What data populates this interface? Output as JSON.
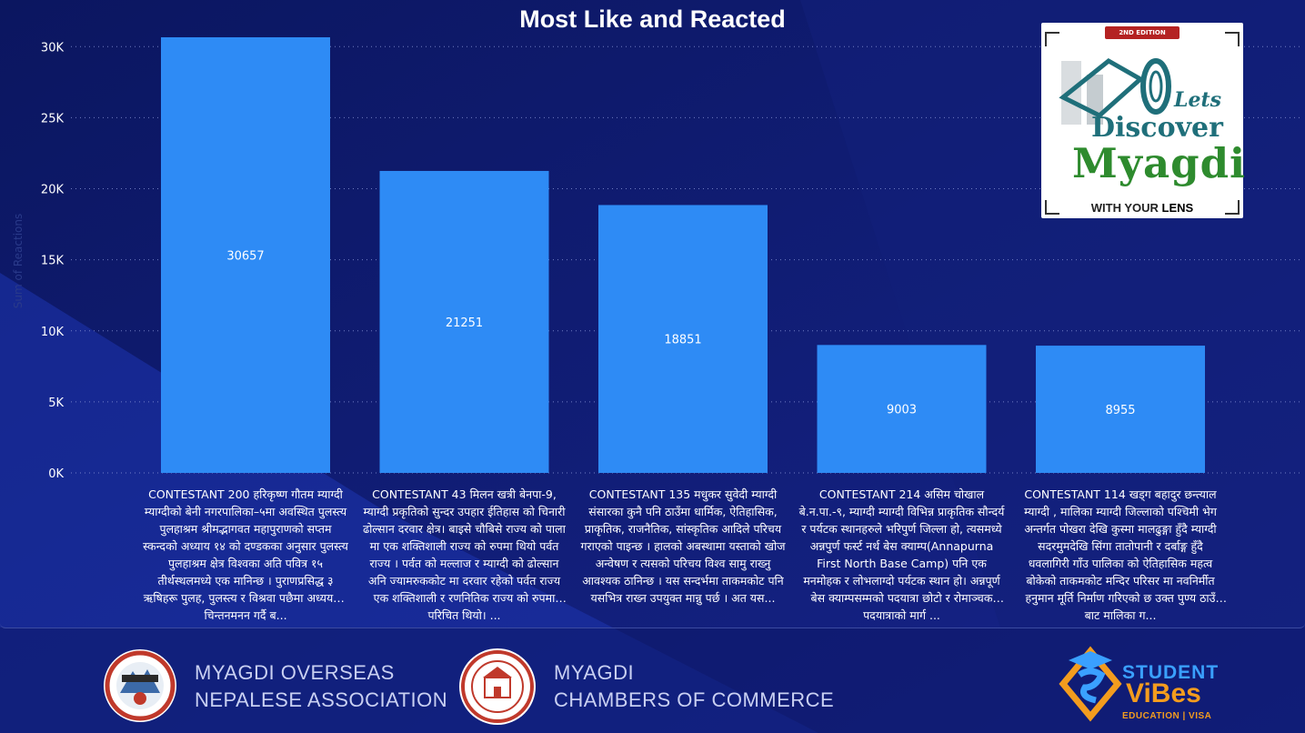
{
  "chart_data": {
    "type": "bar",
    "title": "Most Like and Reacted",
    "ylabel": "Sum of Reactions",
    "ylim": [
      0,
      32000
    ],
    "yticks": [
      0,
      5000,
      10000,
      15000,
      20000,
      25000,
      30000
    ],
    "ytick_labels": [
      "0K",
      "5K",
      "10K",
      "15K",
      "20K",
      "25K",
      "30K"
    ],
    "grid": true,
    "bar_color": "#2e8bf5",
    "categories": [
      "CONTESTANT 200 हरिकृष्ण गौतम म्याग्दी म्याग्दीको बेनी नगरपालिका–५मा अवस्थित पुलस्त्य पुलहाश्रम श्रीमद्भागवत महापुराणको सप्तम स्कन्दको अध्याय १४ को दण्डकका अनुसार पुलस्त्य पुलहाश्रम क्षेत्र विश्वका अति पवित्र १५ तीर्थस्थलमध्ये एक मानिन्छ । पुराणप्रसिद्ध ३ ऋषिहरू पुलह, पुलस्त्य र विश्रवा पछैमा अध्ययन र चिन्तनमनन गर्दै ब...",
      "CONTESTANT 43 मिलन खत्री बेनपा-9, म्याग्दी प्रकृतिको सुन्दर उपहार ईतिहास को चिनारी ढोल्सान दरवार क्षेत्र। बाइसे चौबिसे राज्य को पाला मा एक शक्तिशाली राज्य को रुपमा थियो पर्वत राज्य । पर्वत को मल्लाज र म्याग्दी को ढोल्सान अनि ज्यामरुककोट मा दरवार रहेको पर्वत राज्य एक शक्तिशाली र रणनितिक राज्य को रुपमा परिचित थियो। ...",
      "CONTESTANT 135 मधुकर सुवेदी म्याग्दी संसारका कुनै पनि ठाउँमा धार्मिक, ऐतिहासिक, प्राकृतिक, राजनैतिक, सांस्कृतिक आदिले परिचय गराएको पाइन्छ । हालको अबस्थामा यस्ताको खोज अन्वेषण र त्यसको परिचय विश्व सामु राख्नु आवश्यक ठानिन्छ । यस सन्दर्भमा ताकमकोट पनि यसभित्र राख्न उपयुक्त मान्नु पर्छ । अत यस...",
      "CONTESTANT 214 असिम चोखाल बे.न.पा.-९, म्याग्दी म्याग्दी विभिन्न प्राकृतिक सौन्दर्य र पर्यटक स्थानहरुले भरिपुर्ण जिल्ला हो, त्यसमध्ये अन्नपुर्ण फर्स्ट नर्थ बेस क्याम्प(Annapurna First North Base Camp) पनि एक मनमोहक र लोभलाग्दो पर्यटक स्थान हो। अन्नपूर्ण बेस क्याम्पसम्मको पदयात्रा छोटो र रोमाञ्चक पदयात्राको मार्ग ...",
      "CONTESTANT 114 खड्ग बहादुर छन्त्याल म्याग्दी , मालिका म्याग्दी जिल्लाको पश्चिमी भेग अन्तर्गत पोखरा देखि कुस्मा मालढुङ्गा हुँदै म्याग्दी सदरमुमदेखि सिंगा तातोपानी र दर्बाङ्ग हुँदै धवलागिरी गाँउ पालिका को ऐतिहासिक महत्व बोकेको ताकमकोट मन्दिर परिसर मा नवनिर्मीत हनुमान मूर्ति निर्माण गरिएको छ उक्त पुण्य ठाउँ बाट मालिका ग..."
    ],
    "values": [
      30657,
      21251,
      18851,
      9003,
      8955
    ]
  },
  "logo": {
    "edition": "2ND EDITION",
    "lets": "Lets",
    "discover": "Discover",
    "myagdi": "Myagdi",
    "tagline_with": "WITH YOUR ",
    "tagline_lens": "LENS"
  },
  "footer": {
    "org1_line1": "MYAGDI OVERSEAS",
    "org1_line2": "NEPALESE ASSOCIATION",
    "org2_line1": "MYAGDI",
    "org2_line2": "CHAMBERS OF COMMERCE",
    "sponsor_line1": "STUDENT",
    "sponsor_line2": "ViBes",
    "sponsor_line3": "EDUCATION | VISA"
  },
  "colors": {
    "background": "#0d1a6e",
    "accent": "#2e8bf5",
    "sponsor_orange": "#f39c1e",
    "sponsor_blue": "#3aa0ff"
  }
}
